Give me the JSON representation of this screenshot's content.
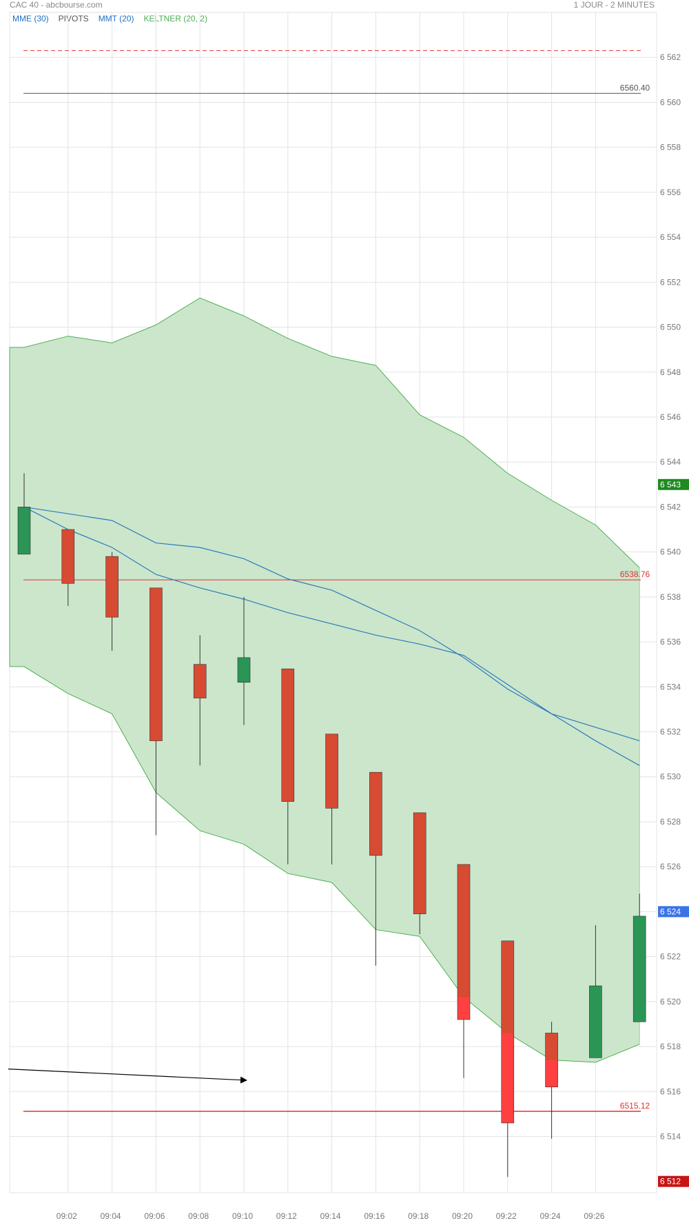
{
  "header": {
    "title": "CAC 40 - abcbourse.com",
    "period": "1 JOUR - 2 MINUTES"
  },
  "indicators": [
    {
      "label": "MME (30)",
      "color": "#1f6fc5"
    },
    {
      "label": "PIVOTS",
      "color": "#555555"
    },
    {
      "label": "MMT (20)",
      "color": "#1f6fc5"
    },
    {
      "label": "KELTNER (20, 2)",
      "color": "#4caf50"
    }
  ],
  "colors": {
    "up": "#2a9555",
    "down": "#d64b32",
    "down_light": "#ff4040",
    "keltner_fill": "#cce6cc",
    "keltner_line": "#4caf50",
    "ma": "#2b7bb9",
    "grid": "#e3e3e3",
    "pivot_red": "#e03030",
    "pivot_dark": "#555555"
  },
  "chart_data": {
    "type": "candlestick",
    "x_ticks": [
      "09:02",
      "09:04",
      "09:06",
      "09:08",
      "09:10",
      "09:12",
      "09:14",
      "09:16",
      "09:18",
      "09:20",
      "09:22",
      "09:24",
      "09:26"
    ],
    "y_ticks": [
      "6 562",
      "6 560",
      "6 558",
      "6 556",
      "6 554",
      "6 552",
      "6 550",
      "6 548",
      "6 546",
      "6 544",
      "6 542",
      "6 540",
      "6 538",
      "6 536",
      "6 534",
      "6 532",
      "6 530",
      "6 528",
      "6 526",
      "6 524",
      "6 522",
      "6 520",
      "6 518",
      "6 516",
      "6 514"
    ],
    "ylim": [
      6511.5,
      6564
    ],
    "candles": [
      {
        "time": "09:00",
        "open": 6539.9,
        "high": 6543.5,
        "low": 6539.9,
        "close": 6542.0
      },
      {
        "time": "09:02",
        "open": 6541.0,
        "high": 6541.0,
        "low": 6537.6,
        "close": 6538.6
      },
      {
        "time": "09:04",
        "open": 6539.8,
        "high": 6540.0,
        "low": 6535.6,
        "close": 6537.1
      },
      {
        "time": "09:06",
        "open": 6538.4,
        "high": 6538.4,
        "low": 6527.4,
        "close": 6531.6
      },
      {
        "time": "09:08",
        "open": 6535.0,
        "high": 6536.3,
        "low": 6530.5,
        "close": 6533.5
      },
      {
        "time": "09:10",
        "open": 6534.2,
        "high": 6538.0,
        "low": 6532.3,
        "close": 6535.3
      },
      {
        "time": "09:12",
        "open": 6534.8,
        "high": 6534.8,
        "low": 6526.1,
        "close": 6528.9
      },
      {
        "time": "09:14",
        "open": 6531.9,
        "high": 6531.9,
        "low": 6526.1,
        "close": 6528.6
      },
      {
        "time": "09:16",
        "open": 6530.2,
        "high": 6530.2,
        "low": 6521.6,
        "close": 6526.5
      },
      {
        "time": "09:18",
        "open": 6528.4,
        "high": 6528.4,
        "low": 6523.0,
        "close": 6523.9
      },
      {
        "time": "09:20",
        "open": 6526.1,
        "high": 6526.1,
        "low": 6516.6,
        "close": 6519.2
      },
      {
        "time": "09:22",
        "open": 6522.7,
        "high": 6522.7,
        "low": 6512.2,
        "close": 6514.6
      },
      {
        "time": "09:24",
        "open": 6518.6,
        "high": 6519.1,
        "low": 6513.9,
        "close": 6516.2
      },
      {
        "time": "09:26",
        "open": 6517.5,
        "high": 6523.4,
        "low": 6517.5,
        "close": 6520.7
      },
      {
        "time": "09:28",
        "open": 6519.1,
        "high": 6524.8,
        "low": 6519.1,
        "close": 6523.8
      }
    ],
    "keltner_upper": [
      6549.1,
      6549.6,
      6549.3,
      6550.1,
      6551.3,
      6550.5,
      6549.5,
      6548.7,
      6548.3,
      6546.1,
      6545.1,
      6543.5,
      6542.3,
      6541.2,
      6539.3
    ],
    "keltner_lower": [
      6534.9,
      6533.7,
      6532.8,
      6529.3,
      6527.6,
      6527.0,
      6525.7,
      6525.3,
      6523.2,
      6522.9,
      6520.2,
      6518.6,
      6517.4,
      6517.3,
      6518.1
    ],
    "ma_series": [
      {
        "values": [
          6542.0,
          6541.7,
          6541.4,
          6540.4,
          6540.2,
          6539.7,
          6538.8,
          6538.3,
          6537.4,
          6536.5,
          6535.3,
          6533.9,
          6532.8,
          6531.6,
          6530.5
        ]
      },
      {
        "values": [
          6542.0,
          6541.0,
          6540.2,
          6539.0,
          6538.4,
          6537.9,
          6537.3,
          6536.8,
          6536.3,
          6535.9,
          6535.4,
          6534.1,
          6532.8,
          6532.2,
          6531.6
        ]
      }
    ],
    "pivots": [
      {
        "value": 6562.3,
        "style": "dashed",
        "color": "#e03030",
        "label": ""
      },
      {
        "value": 6560.4,
        "style": "solid",
        "color": "#555555",
        "label": "6560.40"
      },
      {
        "value": 6538.76,
        "style": "solid",
        "color": "#e03030",
        "label": "6538.76"
      },
      {
        "value": 6515.12,
        "style": "solid",
        "color": "#e03030",
        "label": "6515.12"
      }
    ],
    "price_tags": [
      {
        "value": 6543.0,
        "label": "6 543",
        "color": "#1f8a1f"
      },
      {
        "value": 6524.0,
        "label": "6 524",
        "color": "#3b73e8"
      },
      {
        "value": 6512.0,
        "label": "6 512",
        "color": "#c81414"
      }
    ],
    "drawn_line": {
      "from": {
        "time": "08:59",
        "price": 6517.0
      },
      "to": {
        "time": "09:10",
        "price": 6516.5
      }
    }
  }
}
